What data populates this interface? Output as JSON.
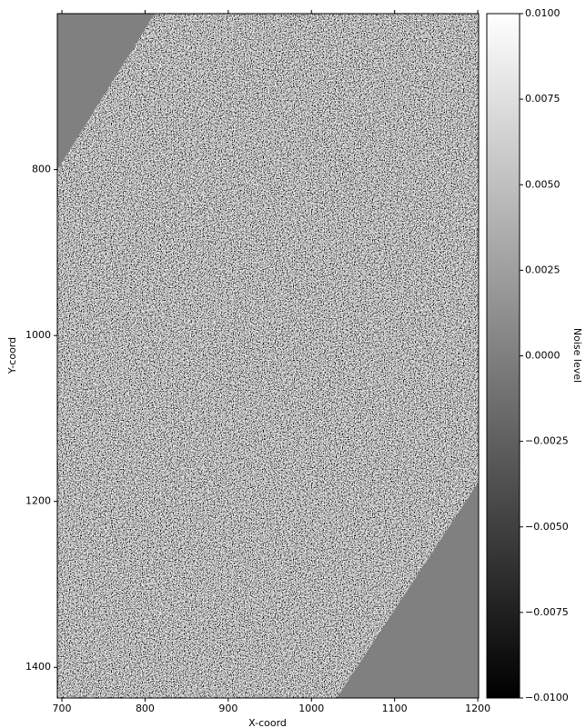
{
  "chart_data": {
    "type": "image",
    "colormap": "gray",
    "xlabel": "X-coord",
    "ylabel": "Y-coord",
    "xlim": [
      694.5,
      1201
    ],
    "ylim": [
      612,
      1437
    ],
    "y_inverted": true,
    "xticks": [
      700,
      800,
      900,
      1000,
      1100,
      1200
    ],
    "yticks": [
      800,
      1000,
      1200,
      1400
    ],
    "colorbar": {
      "label": "Noise level",
      "lim": [
        -0.01,
        0.01
      ],
      "ticks": [
        {
          "value": -0.01,
          "label": "−0.0100"
        },
        {
          "value": -0.0075,
          "label": "−0.0075"
        },
        {
          "value": -0.005,
          "label": "−0.0050"
        },
        {
          "value": -0.0025,
          "label": "−0.0025"
        },
        {
          "value": 0,
          "label": "0.0000"
        },
        {
          "value": 0.0025,
          "label": "0.0025"
        },
        {
          "value": 0.005,
          "label": "0.0050"
        },
        {
          "value": 0.0075,
          "label": "0.0075"
        },
        {
          "value": 0.01,
          "label": "0.0100"
        }
      ]
    }
  }
}
